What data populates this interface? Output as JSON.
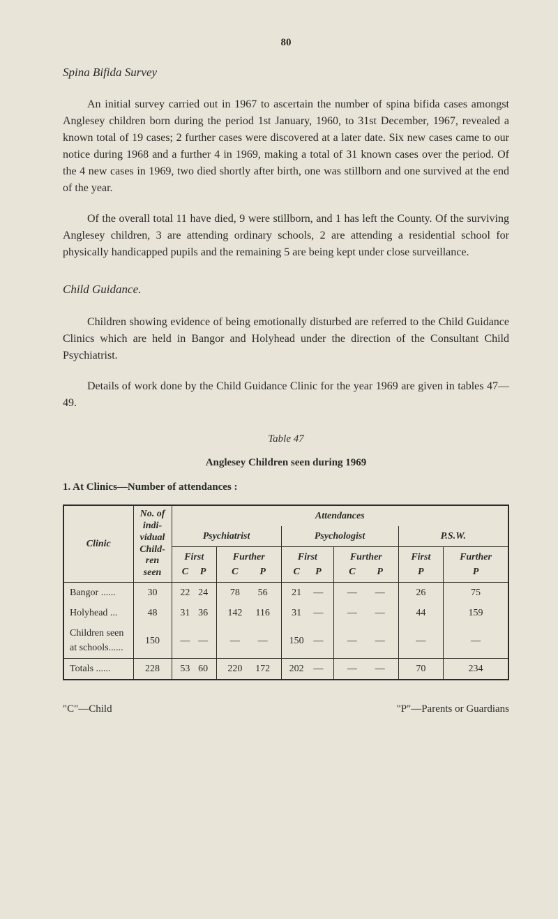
{
  "page_number": "80",
  "section_title": "Spina Bifida Survey",
  "paragraphs": {
    "p1": "An initial survey carried out in 1967 to ascertain the number of spina bifida cases amongst Anglesey children born during the period 1st January, 1960, to 31st December, 1967, revealed a known total of 19 cases; 2 further cases were discovered at a later date. Six new cases came to our notice during 1968 and a further 4 in 1969, making a total of 31 known cases over the period. Of the 4 new cases in 1969, two died shortly after birth, one was stillborn and one survived at the end of the year.",
    "p2": "Of the overall total 11 have died, 9 were stillborn, and 1 has left the County. Of the surviving Anglesey children, 3 are attending ordinary schools, 2 are attending a residential school for physically handicapped pupils and the remaining 5 are being kept under close surveillance.",
    "p3": "Children showing evidence of being emotionally disturbed are referred to the Child Guidance Clinics which are held in Bangor and Holyhead under the direction of the Consultant Child Psychiatrist.",
    "p4": "Details of work done by the Child Guidance Clinic for the year 1969 are given in tables 47—49."
  },
  "sub_section_title": "Child Guidance.",
  "table": {
    "label": "Table 47",
    "title": "Anglesey Children seen during 1969",
    "subtitle": "1.  At Clinics—Number of attendances :",
    "headers": {
      "clinic": "Clinic",
      "no_of": "No. of indi- vidual Child- ren seen",
      "attendances": "Attendances",
      "psychiatrist": "Psychiatrist",
      "psychologist": "Psychologist",
      "psw": "P.S.W.",
      "first": "First",
      "further": "Further",
      "c": "C",
      "p": "P"
    },
    "rows": [
      {
        "clinic": "Bangor ......",
        "seen": "30",
        "psy_first_c": "22",
        "psy_first_p": "24",
        "psy_further_c": "78",
        "psy_further_p": "56",
        "psych_first_c": "21",
        "psych_first_p": "—",
        "psych_further_c": "—",
        "psych_further_p": "—",
        "psw_first_p": "26",
        "psw_further_p": "75"
      },
      {
        "clinic": "Holyhead ...",
        "seen": "48",
        "psy_first_c": "31",
        "psy_first_p": "36",
        "psy_further_c": "142",
        "psy_further_p": "116",
        "psych_first_c": "31",
        "psych_first_p": "—",
        "psych_further_c": "—",
        "psych_further_p": "—",
        "psw_first_p": "44",
        "psw_further_p": "159"
      },
      {
        "clinic": "Children seen at schools......",
        "seen": "150",
        "psy_first_c": "—",
        "psy_first_p": "—",
        "psy_further_c": "—",
        "psy_further_p": "—",
        "psych_first_c": "150",
        "psych_first_p": "—",
        "psych_further_c": "—",
        "psych_further_p": "—",
        "psw_first_p": "—",
        "psw_further_p": "—"
      }
    ],
    "totals": {
      "label": "Totals ......",
      "seen": "228",
      "psy_first_c": "53",
      "psy_first_p": "60",
      "psy_further_c": "220",
      "psy_further_p": "172",
      "psych_first_c": "202",
      "psych_first_p": "—",
      "psych_further_c": "—",
      "psych_further_p": "—",
      "psw_first_p": "70",
      "psw_further_p": "234"
    }
  },
  "footer": {
    "c_note": "\"C\"—Child",
    "p_note": "\"P\"—Parents or Guardians"
  }
}
